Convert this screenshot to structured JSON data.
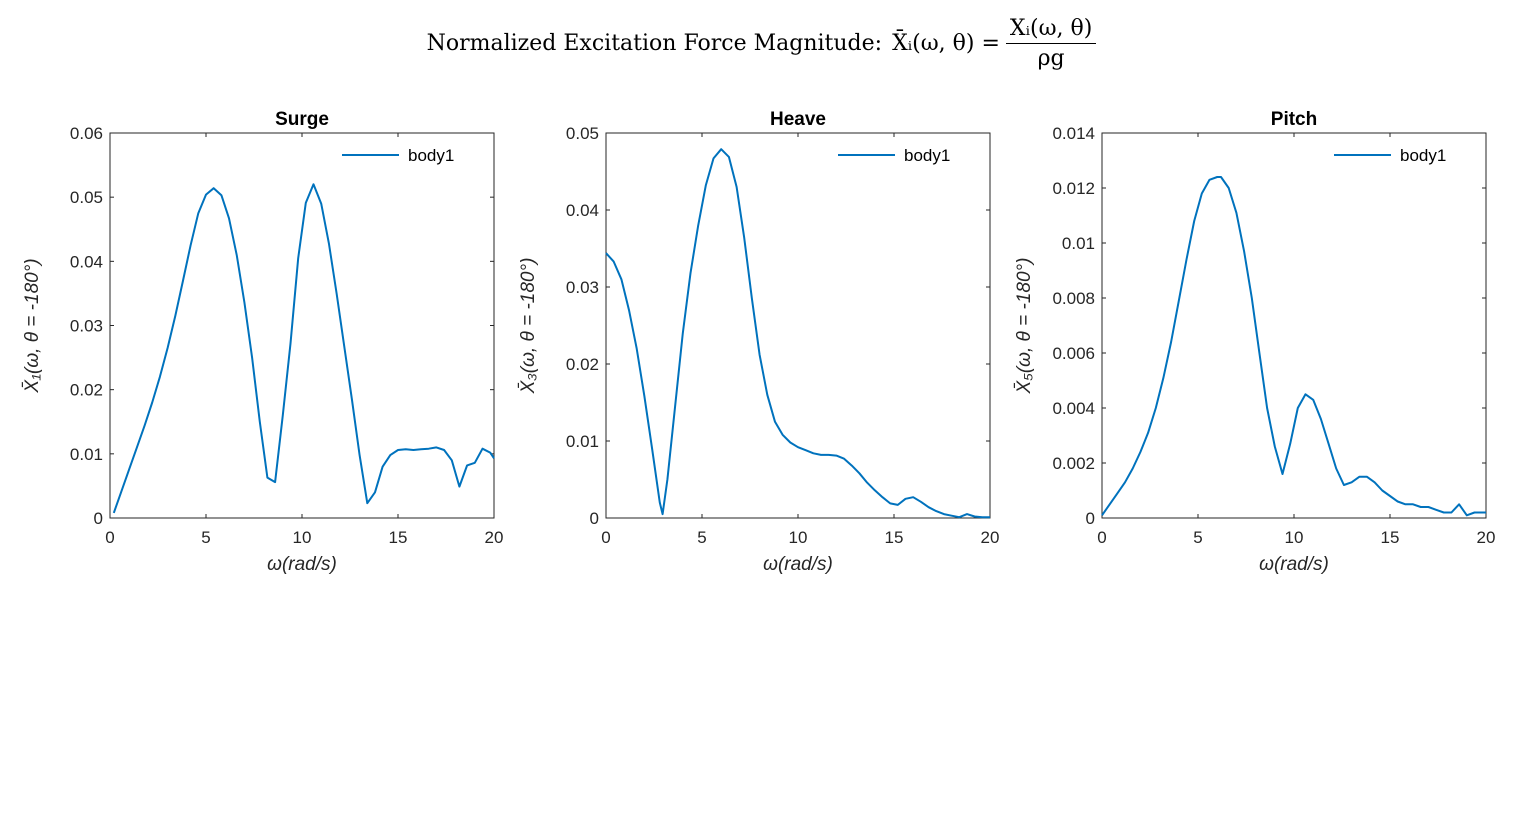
{
  "figure": {
    "suptitle_prefix": "Normalized Excitation Force Magnitude:",
    "suptitle_lhs": "X̄ᵢ(ω, θ) =",
    "suptitle_numerator": "Xᵢ(ω, θ)",
    "suptitle_denominator": "ρg"
  },
  "colors": {
    "series": "#0072BD",
    "axes": "#262626",
    "background": "#ffffff"
  },
  "chart_data": [
    {
      "type": "line",
      "title": "Surge",
      "xlabel": "ω(rad/s)",
      "ylabel": "X̄₁(ω, θ = -180°)",
      "xlim": [
        0,
        20
      ],
      "ylim": [
        0,
        0.06
      ],
      "xticks": [
        "0",
        "5",
        "10",
        "15",
        "20"
      ],
      "yticks": [
        "0",
        "0.01",
        "0.02",
        "0.03",
        "0.04",
        "0.05",
        "0.06"
      ],
      "legend_position": "top-right",
      "grid": false,
      "series": [
        {
          "name": "body1",
          "x": [
            0.2,
            0.6,
            1.0,
            1.4,
            1.8,
            2.2,
            2.6,
            3.0,
            3.4,
            3.8,
            4.2,
            4.6,
            5.0,
            5.4,
            5.8,
            6.2,
            6.6,
            7.0,
            7.4,
            7.8,
            8.2,
            8.6,
            9.0,
            9.4,
            9.8,
            10.2,
            10.6,
            11.0,
            11.4,
            11.8,
            12.2,
            12.6,
            13.0,
            13.4,
            13.8,
            14.2,
            14.6,
            15.0,
            15.4,
            15.8,
            16.2,
            16.6,
            17.0,
            17.4,
            17.8,
            18.2,
            18.6,
            19.0,
            19.4,
            19.8,
            20.0
          ],
          "y": [
            0.0008,
            0.0042,
            0.0076,
            0.011,
            0.0144,
            0.018,
            0.022,
            0.0265,
            0.0315,
            0.037,
            0.0425,
            0.0475,
            0.0504,
            0.0514,
            0.0503,
            0.0467,
            0.041,
            0.0336,
            0.025,
            0.015,
            0.0063,
            0.0056,
            0.016,
            0.0272,
            0.0405,
            0.0491,
            0.052,
            0.049,
            0.0428,
            0.035,
            0.0268,
            0.0185,
            0.0098,
            0.0023,
            0.004,
            0.008,
            0.0098,
            0.0106,
            0.0107,
            0.0106,
            0.0107,
            0.0108,
            0.011,
            0.0106,
            0.009,
            0.0049,
            0.0082,
            0.0086,
            0.0108,
            0.0102,
            0.0093
          ]
        }
      ]
    },
    {
      "type": "line",
      "title": "Heave",
      "xlabel": "ω(rad/s)",
      "ylabel": "X̄₃(ω, θ = -180°)",
      "xlim": [
        0,
        20
      ],
      "ylim": [
        0,
        0.05
      ],
      "xticks": [
        "0",
        "5",
        "10",
        "15",
        "20"
      ],
      "yticks": [
        "0",
        "0.01",
        "0.02",
        "0.03",
        "0.04",
        "0.05"
      ],
      "legend_position": "top-right",
      "grid": false,
      "series": [
        {
          "name": "body1",
          "x": [
            0.0,
            0.4,
            0.8,
            1.2,
            1.6,
            2.0,
            2.4,
            2.8,
            2.95,
            3.2,
            3.6,
            4.0,
            4.4,
            4.8,
            5.2,
            5.6,
            6.0,
            6.4,
            6.8,
            7.2,
            7.6,
            8.0,
            8.4,
            8.8,
            9.2,
            9.6,
            10.0,
            10.4,
            10.8,
            11.2,
            11.6,
            12.0,
            12.4,
            12.8,
            13.2,
            13.6,
            14.0,
            14.4,
            14.8,
            15.2,
            15.6,
            16.0,
            16.4,
            16.8,
            17.2,
            17.6,
            18.0,
            18.4,
            18.8,
            19.2,
            19.6,
            20.0
          ],
          "y": [
            0.0344,
            0.0333,
            0.031,
            0.027,
            0.022,
            0.0158,
            0.009,
            0.002,
            0.0005,
            0.005,
            0.0145,
            0.024,
            0.0318,
            0.038,
            0.0432,
            0.0467,
            0.0479,
            0.0469,
            0.043,
            0.0364,
            0.0285,
            0.0212,
            0.016,
            0.0125,
            0.0108,
            0.0098,
            0.0092,
            0.0088,
            0.0084,
            0.0082,
            0.0082,
            0.0081,
            0.0077,
            0.0068,
            0.0058,
            0.0046,
            0.0036,
            0.0027,
            0.0019,
            0.0017,
            0.0025,
            0.0027,
            0.0021,
            0.0014,
            0.0009,
            0.0005,
            0.0003,
            0.0001,
            0.0005,
            0.0002,
            0.0001,
            0.0001
          ]
        }
      ]
    },
    {
      "type": "line",
      "title": "Pitch",
      "xlabel": "ω(rad/s)",
      "ylabel": "X̄₅(ω, θ = -180°)",
      "xlim": [
        0,
        20
      ],
      "ylim": [
        0,
        0.014
      ],
      "xticks": [
        "0",
        "5",
        "10",
        "15",
        "20"
      ],
      "yticks": [
        "0",
        "0.002",
        "0.004",
        "0.006",
        "0.008",
        "0.01",
        "0.012",
        "0.014"
      ],
      "legend_position": "top-right",
      "grid": false,
      "series": [
        {
          "name": "body1",
          "x": [
            0.0,
            0.4,
            0.8,
            1.2,
            1.6,
            2.0,
            2.4,
            2.8,
            3.2,
            3.6,
            4.0,
            4.4,
            4.8,
            5.2,
            5.6,
            6.0,
            6.2,
            6.6,
            7.0,
            7.4,
            7.8,
            8.2,
            8.6,
            9.0,
            9.4,
            9.8,
            10.2,
            10.6,
            11.0,
            11.4,
            11.8,
            12.2,
            12.6,
            13.0,
            13.4,
            13.8,
            14.2,
            14.6,
            15.0,
            15.4,
            15.8,
            16.2,
            16.6,
            17.0,
            17.4,
            17.8,
            18.2,
            18.6,
            19.0,
            19.4,
            19.8,
            20.0
          ],
          "y": [
            0.0001,
            0.0005,
            0.0009,
            0.0013,
            0.0018,
            0.0024,
            0.0031,
            0.004,
            0.0051,
            0.0064,
            0.0079,
            0.0094,
            0.0108,
            0.0118,
            0.0123,
            0.0124,
            0.0124,
            0.012,
            0.0111,
            0.0097,
            0.008,
            0.006,
            0.004,
            0.0026,
            0.0016,
            0.0027,
            0.004,
            0.0045,
            0.0043,
            0.0036,
            0.0027,
            0.0018,
            0.0012,
            0.0013,
            0.0015,
            0.0015,
            0.0013,
            0.001,
            0.0008,
            0.0006,
            0.0005,
            0.0005,
            0.0004,
            0.0004,
            0.0003,
            0.0002,
            0.0002,
            0.0005,
            0.0001,
            0.0002,
            0.0002,
            0.0002
          ]
        }
      ]
    }
  ]
}
